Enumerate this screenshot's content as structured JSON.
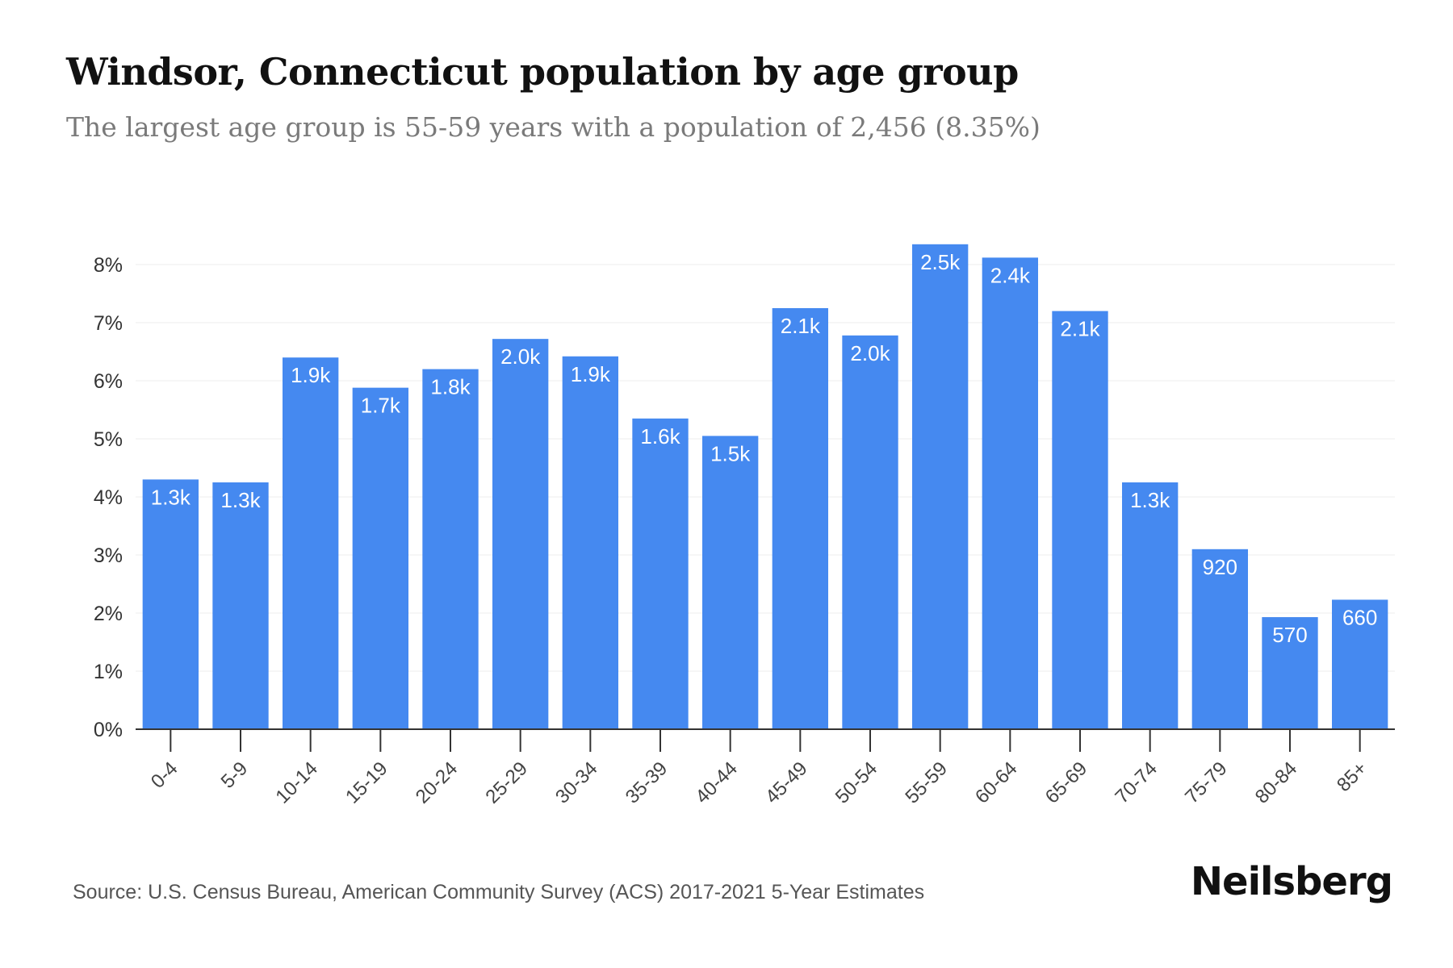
{
  "header": {
    "title": "Windsor, Connecticut population by age group",
    "subtitle": "The largest age group is 55-59 years with a population of 2,456 (8.35%)"
  },
  "footer": {
    "source": "Source: U.S. Census Bureau, American Community Survey (ACS) 2017-2021 5-Year Estimates",
    "brand": "Neilsberg"
  },
  "colors": {
    "bar": "#4589F0",
    "grid": "#ececec",
    "axis": "#333333",
    "label": "#ffffff"
  },
  "chart_data": {
    "type": "bar",
    "title": "Windsor, Connecticut population by age group",
    "subtitle": "The largest age group is 55-59 years with a population of 2,456 (8.35%)",
    "categories": [
      "0-4",
      "5-9",
      "10-14",
      "15-19",
      "20-24",
      "25-29",
      "30-34",
      "35-39",
      "40-44",
      "45-49",
      "50-54",
      "55-59",
      "60-64",
      "65-69",
      "70-74",
      "75-79",
      "80-84",
      "85+"
    ],
    "values": [
      4.3,
      4.25,
      6.4,
      5.88,
      6.2,
      6.72,
      6.42,
      5.35,
      5.05,
      7.25,
      6.78,
      8.35,
      8.12,
      7.2,
      4.25,
      3.1,
      1.93,
      2.23
    ],
    "data_labels": [
      "1.3k",
      "1.3k",
      "1.9k",
      "1.7k",
      "1.8k",
      "2.0k",
      "1.9k",
      "1.6k",
      "1.5k",
      "2.1k",
      "2.0k",
      "2.5k",
      "2.4k",
      "2.1k",
      "1.3k",
      "920",
      "570",
      "660"
    ],
    "yticks": [
      "0%",
      "1%",
      "2%",
      "3%",
      "4%",
      "5%",
      "6%",
      "7%",
      "8%"
    ],
    "ylim": [
      0,
      8
    ],
    "xlabel": "",
    "ylabel": "",
    "grid": true,
    "legend": "none"
  }
}
